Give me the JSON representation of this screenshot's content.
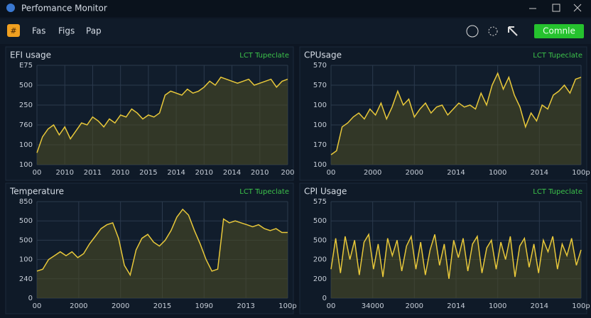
{
  "window": {
    "title": "Perfomance Monitor"
  },
  "menu": [
    "Fas",
    "Figs",
    "Pap"
  ],
  "button": "Comnle",
  "panels": [
    {
      "title": "EFI usage",
      "tag": "LCT Tupeclate",
      "y_labels": [
        "E75",
        "500",
        "250",
        "760",
        "100",
        "100"
      ],
      "x_labels": [
        "00",
        "2010",
        "2011",
        "2010",
        "2015",
        "2014",
        "2010",
        "2014",
        "2010",
        "200"
      ],
      "ylim": [
        0,
        100
      ],
      "values": [
        12,
        28,
        36,
        40,
        30,
        38,
        26,
        34,
        42,
        40,
        48,
        44,
        38,
        46,
        42,
        50,
        48,
        56,
        52,
        46,
        50,
        48,
        52,
        70,
        74,
        72,
        70,
        76,
        72,
        74,
        78,
        84,
        80,
        88,
        86,
        84,
        82,
        84,
        86,
        80,
        82,
        84,
        86,
        78,
        84,
        86
      ]
    },
    {
      "title": "CPUsage",
      "tag": "LCT Tupeclate",
      "y_labels": [
        "570",
        "570",
        "100",
        "100",
        "170",
        "100"
      ],
      "x_labels": [
        "00",
        "2000",
        "2000",
        "2014",
        "1000",
        "2014",
        "100p"
      ],
      "ylim": [
        0,
        100
      ],
      "values": [
        10,
        14,
        38,
        42,
        48,
        52,
        46,
        56,
        50,
        62,
        46,
        58,
        74,
        60,
        66,
        48,
        56,
        62,
        52,
        58,
        60,
        50,
        56,
        62,
        58,
        60,
        56,
        72,
        60,
        80,
        92,
        76,
        88,
        70,
        58,
        38,
        52,
        44,
        60,
        56,
        70,
        74,
        80,
        72,
        86,
        88
      ]
    },
    {
      "title": "Temperature",
      "tag": "LCT Tupeclate",
      "y_labels": [
        "850",
        "500",
        "500",
        "100",
        "240",
        "0"
      ],
      "x_labels": [
        "00",
        "2000",
        "2000",
        "2015",
        "1090",
        "2013",
        "100p"
      ],
      "ylim": [
        0,
        100
      ],
      "values": [
        28,
        30,
        40,
        44,
        48,
        44,
        48,
        42,
        46,
        56,
        64,
        72,
        76,
        78,
        62,
        34,
        24,
        50,
        62,
        66,
        58,
        54,
        60,
        70,
        84,
        92,
        86,
        70,
        56,
        40,
        28,
        30,
        82,
        78,
        80,
        78,
        76,
        74,
        76,
        72,
        70,
        72,
        68,
        68
      ]
    },
    {
      "title": "CPI Usage",
      "tag": "LCT Tupeclate",
      "y_labels": [
        "575",
        "500",
        "500",
        "200",
        "200",
        "0"
      ],
      "x_labels": [
        "00",
        "34000",
        "2000",
        "2014",
        "1000",
        "2014",
        "100p"
      ],
      "ylim": [
        0,
        100
      ],
      "values": [
        30,
        62,
        26,
        64,
        40,
        60,
        24,
        58,
        66,
        30,
        56,
        22,
        62,
        44,
        60,
        28,
        54,
        64,
        30,
        58,
        24,
        50,
        66,
        34,
        56,
        20,
        60,
        42,
        62,
        28,
        56,
        64,
        26,
        52,
        60,
        30,
        58,
        40,
        64,
        22,
        54,
        62,
        32,
        56,
        26,
        60,
        48,
        64,
        30,
        56,
        44,
        62,
        34,
        50
      ]
    }
  ]
}
